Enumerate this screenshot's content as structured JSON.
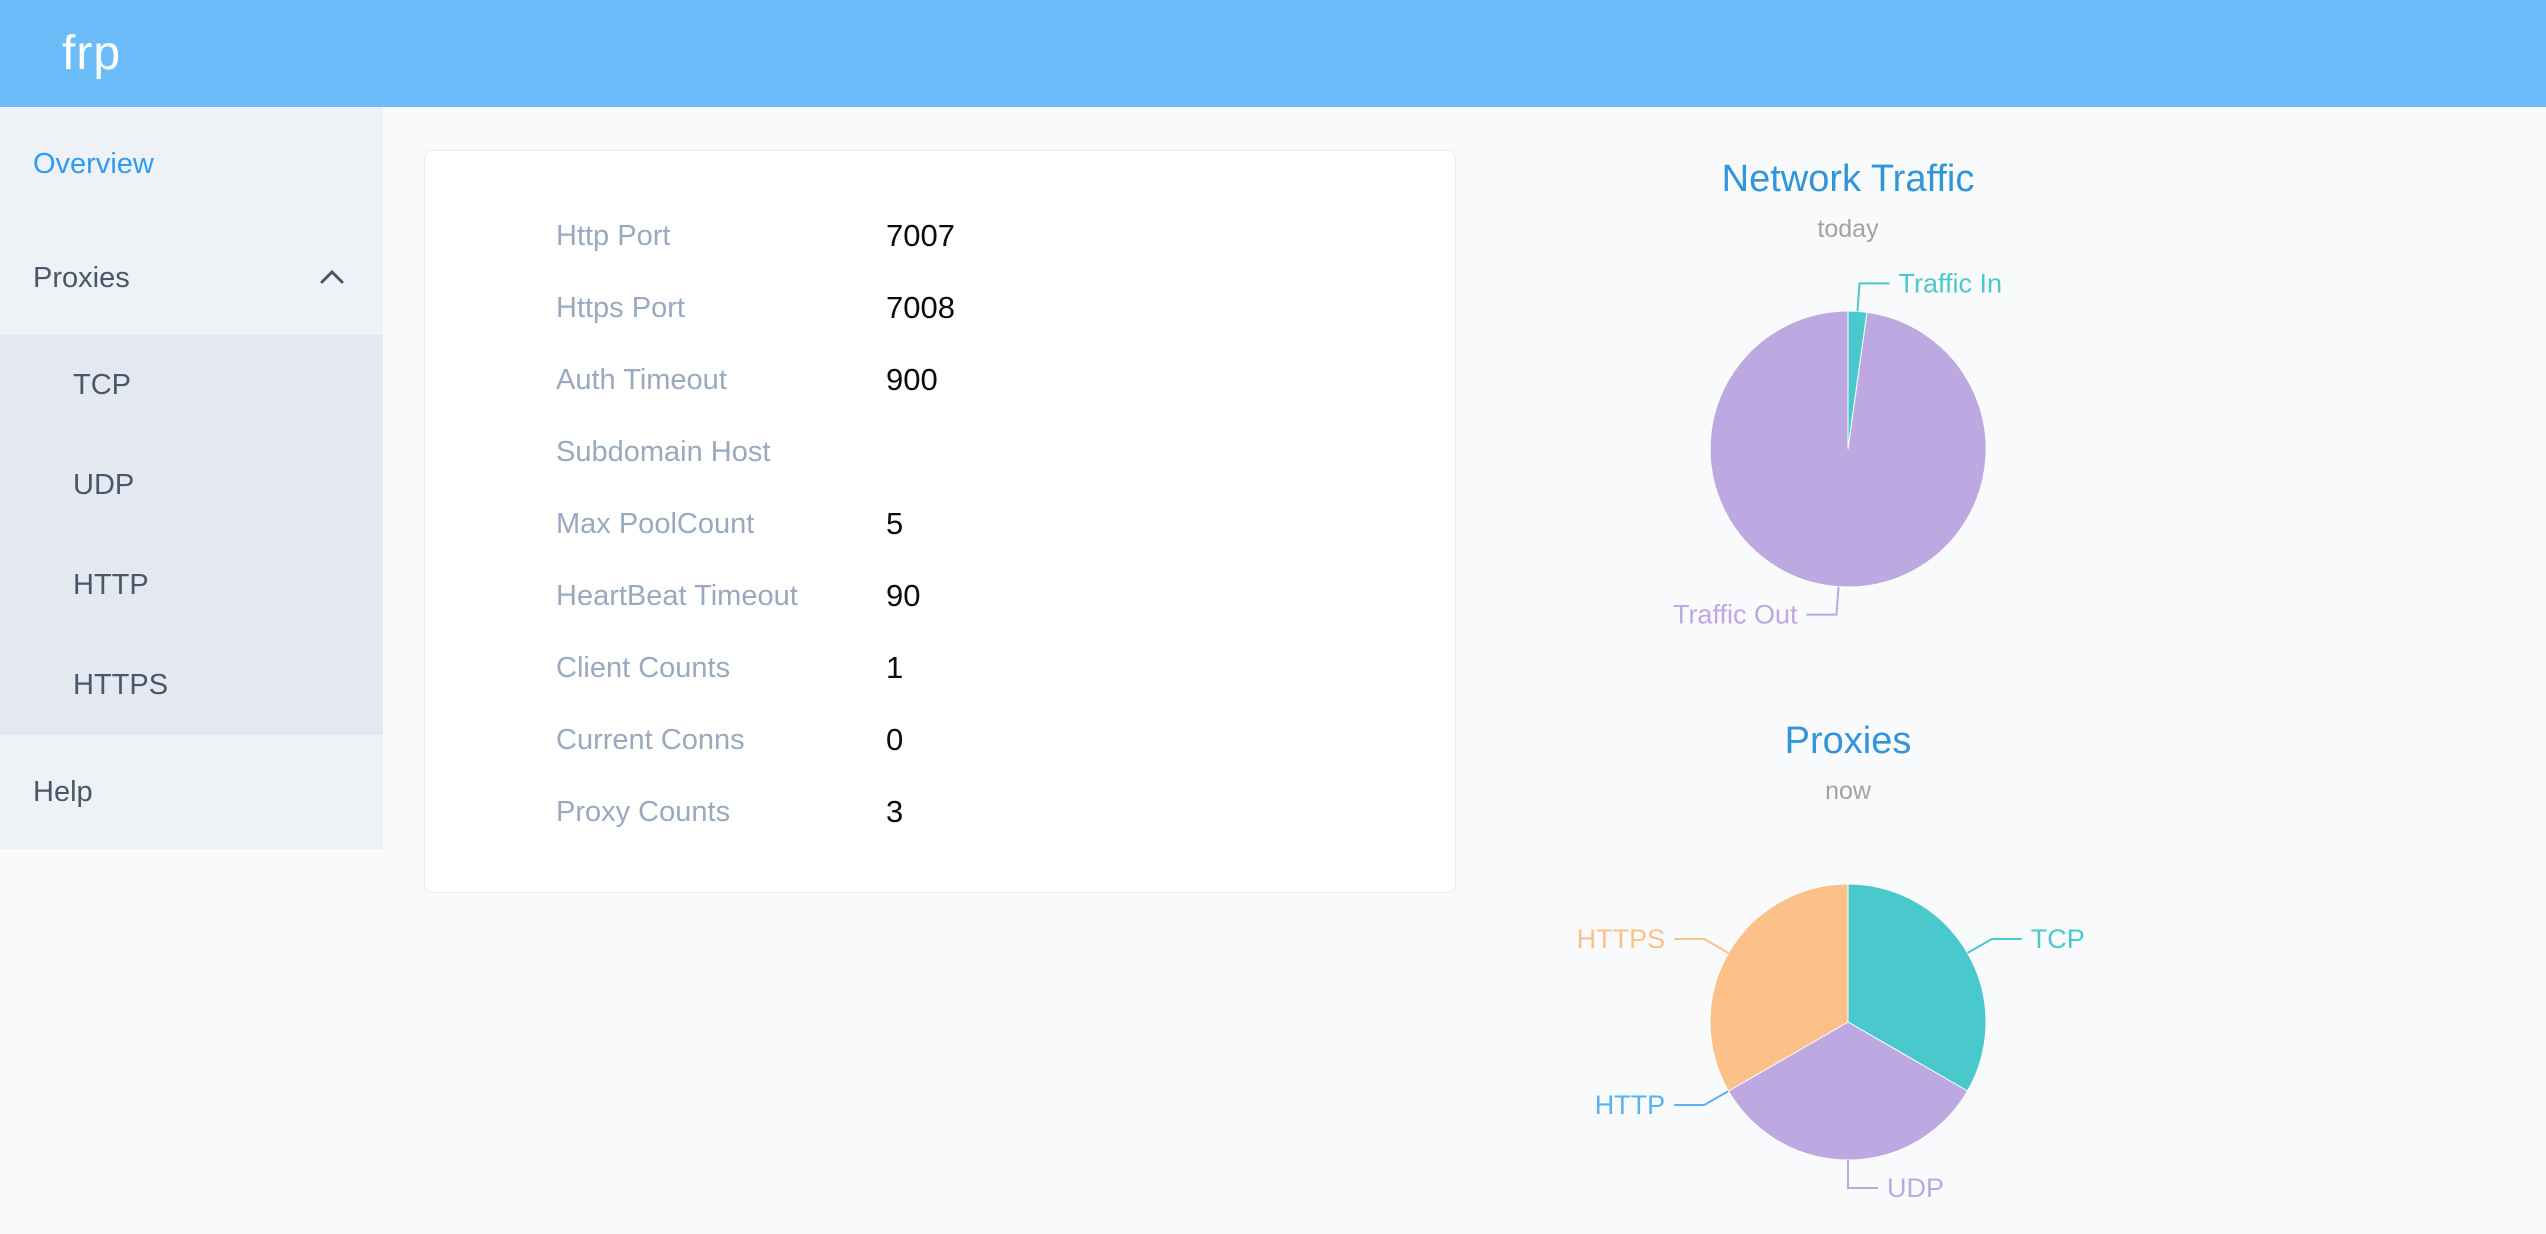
{
  "header": {
    "logo": "frp"
  },
  "sidebar": {
    "items": [
      {
        "label": "Overview",
        "active": true
      },
      {
        "label": "Proxies",
        "expanded": true,
        "children": [
          {
            "label": "TCP"
          },
          {
            "label": "UDP"
          },
          {
            "label": "HTTP"
          },
          {
            "label": "HTTPS"
          }
        ]
      },
      {
        "label": "Help"
      }
    ]
  },
  "config": {
    "rows": [
      {
        "label": "Http Port",
        "value": "7007"
      },
      {
        "label": "Https Port",
        "value": "7008"
      },
      {
        "label": "Auth Timeout",
        "value": "900"
      },
      {
        "label": "Subdomain Host",
        "value": ""
      },
      {
        "label": "Max PoolCount",
        "value": "5"
      },
      {
        "label": "HeartBeat Timeout",
        "value": "90"
      },
      {
        "label": "Client Counts",
        "value": "1"
      },
      {
        "label": "Current Conns",
        "value": "0"
      },
      {
        "label": "Proxy Counts",
        "value": "3"
      }
    ]
  },
  "colors": {
    "header_bg": "#6cbcfa",
    "sidebar_active": "#2d9cf5",
    "chart_title": "#3095db",
    "teal": "#4ac9cc",
    "purple": "#bda8e1",
    "orange": "#fbc189",
    "blue": "#5ab1ef"
  },
  "charts": [
    {
      "title": "Network Traffic",
      "subtitle": "today",
      "chart_data": {
        "type": "pie",
        "labels_position": "outside-with-leader-lines",
        "legend": "none",
        "values_unit": "percent (estimated from slice angles)",
        "series": [
          {
            "name": "Traffic In",
            "value": 2.2,
            "color": "#4ac9cc"
          },
          {
            "name": "Traffic Out",
            "value": 97.8,
            "color": "#bda8e1"
          }
        ]
      }
    },
    {
      "title": "Proxies",
      "subtitle": "now",
      "chart_data": {
        "type": "pie",
        "labels_position": "outside-with-leader-lines",
        "legend": "none",
        "values_unit": "proxy count",
        "series": [
          {
            "name": "TCP",
            "value": 1,
            "color": "#4ac9cc"
          },
          {
            "name": "UDP",
            "value": 1,
            "color": "#bda8e1"
          },
          {
            "name": "HTTP",
            "value": 0,
            "color": "#5ab1ef"
          },
          {
            "name": "HTTPS",
            "value": 1,
            "color": "#fbc189"
          }
        ]
      }
    }
  ]
}
